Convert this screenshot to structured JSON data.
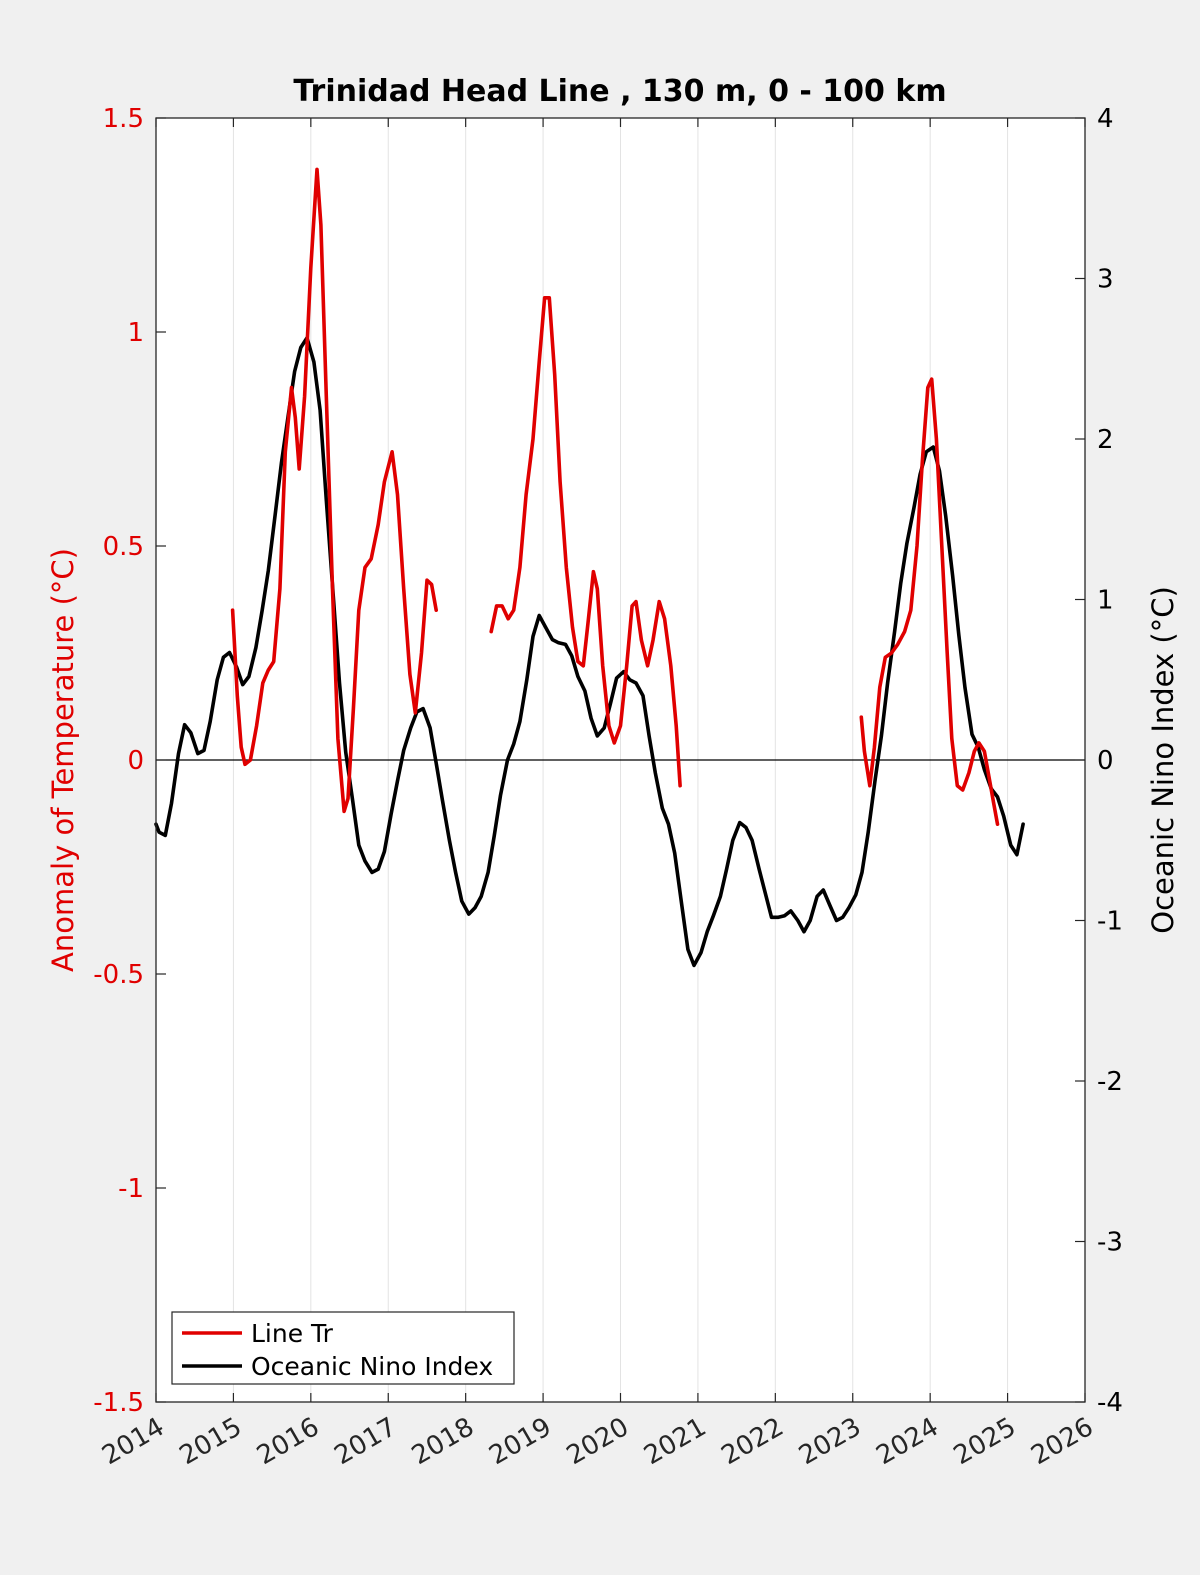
{
  "chart_data": {
    "type": "line",
    "title": "Trinidad Head Line , 130 m, 0 - 100 km",
    "left_ylabel": "Anomaly of Temperature (°C)",
    "right_ylabel": "Oceanic Nino Index (°C)",
    "xlim": [
      2014,
      2026
    ],
    "left_ylim": [
      -1.5,
      1.5
    ],
    "right_ylim": [
      -4,
      4
    ],
    "x_ticks": [
      2014,
      2015,
      2016,
      2017,
      2018,
      2019,
      2020,
      2021,
      2022,
      2023,
      2024,
      2025,
      2026
    ],
    "x_tick_labels": [
      "2014",
      "2015",
      "2016",
      "2017",
      "2018",
      "2019",
      "2020",
      "2021",
      "2022",
      "2023",
      "2024",
      "2025",
      "2026"
    ],
    "left_ticks": [
      -1.5,
      -1,
      -0.5,
      0,
      0.5,
      1,
      1.5
    ],
    "left_tick_labels": [
      "-1.5",
      "-1",
      "-0.5",
      "0",
      "0.5",
      "1",
      "1.5"
    ],
    "right_ticks": [
      -4,
      -3,
      -2,
      -1,
      0,
      1,
      2,
      3,
      4
    ],
    "right_tick_labels": [
      "-4",
      "-3",
      "-2",
      "-1",
      "0",
      "1",
      "2",
      "3",
      "4"
    ],
    "grid": "vertical",
    "zero_line": true,
    "legend_position": "bottom-left",
    "colors": {
      "line_tr": "#e00000",
      "oni": "#000000",
      "left_axis": "#e00000",
      "right_axis": "#000000"
    },
    "series": [
      {
        "name": "Line Tr",
        "axis": "left",
        "segments": [
          [
            [
              2014.99,
              0.35
            ],
            [
              2015.05,
              0.15
            ],
            [
              2015.1,
              0.03
            ],
            [
              2015.15,
              -0.01
            ],
            [
              2015.22,
              0.0
            ],
            [
              2015.3,
              0.08
            ],
            [
              2015.38,
              0.18
            ],
            [
              2015.45,
              0.21
            ],
            [
              2015.52,
              0.23
            ],
            [
              2015.6,
              0.4
            ],
            [
              2015.67,
              0.72
            ],
            [
              2015.75,
              0.87
            ],
            [
              2015.8,
              0.8
            ],
            [
              2015.85,
              0.68
            ],
            [
              2015.92,
              0.85
            ],
            [
              2016.0,
              1.15
            ],
            [
              2016.08,
              1.38
            ],
            [
              2016.13,
              1.25
            ],
            [
              2016.2,
              0.85
            ],
            [
              2016.28,
              0.4
            ],
            [
              2016.35,
              0.05
            ],
            [
              2016.43,
              -0.12
            ],
            [
              2016.48,
              -0.09
            ],
            [
              2016.55,
              0.12
            ],
            [
              2016.62,
              0.35
            ],
            [
              2016.7,
              0.45
            ],
            [
              2016.78,
              0.47
            ],
            [
              2016.87,
              0.55
            ],
            [
              2016.95,
              0.65
            ],
            [
              2017.05,
              0.72
            ],
            [
              2017.12,
              0.62
            ],
            [
              2017.2,
              0.4
            ],
            [
              2017.28,
              0.2
            ],
            [
              2017.35,
              0.11
            ],
            [
              2017.43,
              0.25
            ],
            [
              2017.5,
              0.42
            ],
            [
              2017.56,
              0.41
            ],
            [
              2017.62,
              0.35
            ]
          ],
          [
            [
              2018.33,
              0.3
            ],
            [
              2018.4,
              0.36
            ],
            [
              2018.47,
              0.36
            ],
            [
              2018.55,
              0.33
            ],
            [
              2018.62,
              0.35
            ],
            [
              2018.7,
              0.45
            ],
            [
              2018.78,
              0.62
            ],
            [
              2018.87,
              0.75
            ],
            [
              2018.95,
              0.93
            ],
            [
              2019.02,
              1.08
            ],
            [
              2019.08,
              1.08
            ],
            [
              2019.15,
              0.9
            ],
            [
              2019.22,
              0.65
            ],
            [
              2019.3,
              0.45
            ],
            [
              2019.38,
              0.31
            ],
            [
              2019.45,
              0.23
            ],
            [
              2019.52,
              0.22
            ],
            [
              2019.58,
              0.32
            ],
            [
              2019.65,
              0.44
            ],
            [
              2019.7,
              0.4
            ],
            [
              2019.77,
              0.22
            ],
            [
              2019.85,
              0.08
            ],
            [
              2019.92,
              0.04
            ],
            [
              2020.0,
              0.08
            ],
            [
              2020.08,
              0.22
            ],
            [
              2020.15,
              0.36
            ],
            [
              2020.2,
              0.37
            ],
            [
              2020.27,
              0.28
            ],
            [
              2020.35,
              0.22
            ],
            [
              2020.42,
              0.28
            ],
            [
              2020.5,
              0.37
            ],
            [
              2020.57,
              0.33
            ],
            [
              2020.65,
              0.22
            ],
            [
              2020.72,
              0.08
            ],
            [
              2020.77,
              -0.06
            ]
          ],
          [
            [
              2023.11,
              0.1
            ],
            [
              2023.15,
              0.02
            ],
            [
              2023.22,
              -0.06
            ],
            [
              2023.28,
              0.03
            ],
            [
              2023.35,
              0.17
            ],
            [
              2023.42,
              0.24
            ],
            [
              2023.5,
              0.25
            ],
            [
              2023.58,
              0.27
            ],
            [
              2023.67,
              0.3
            ],
            [
              2023.75,
              0.35
            ],
            [
              2023.83,
              0.5
            ],
            [
              2023.9,
              0.7
            ],
            [
              2023.97,
              0.87
            ],
            [
              2024.02,
              0.89
            ],
            [
              2024.08,
              0.75
            ],
            [
              2024.15,
              0.5
            ],
            [
              2024.22,
              0.25
            ],
            [
              2024.28,
              0.05
            ],
            [
              2024.35,
              -0.06
            ],
            [
              2024.42,
              -0.07
            ],
            [
              2024.5,
              -0.03
            ],
            [
              2024.57,
              0.02
            ],
            [
              2024.63,
              0.04
            ],
            [
              2024.7,
              0.02
            ],
            [
              2024.77,
              -0.05
            ],
            [
              2024.82,
              -0.1
            ],
            [
              2024.87,
              -0.15
            ]
          ]
        ]
      },
      {
        "name": "Oceanic Nino Index",
        "axis": "right",
        "segments": [
          [
            [
              2014.0,
              -0.4
            ],
            [
              2014.04,
              -0.45
            ],
            [
              2014.12,
              -0.47
            ],
            [
              2014.2,
              -0.27
            ],
            [
              2014.29,
              0.04
            ],
            [
              2014.37,
              0.22
            ],
            [
              2014.45,
              0.17
            ],
            [
              2014.54,
              0.04
            ],
            [
              2014.62,
              0.06
            ],
            [
              2014.7,
              0.24
            ],
            [
              2014.79,
              0.5
            ],
            [
              2014.87,
              0.64
            ],
            [
              2014.95,
              0.67
            ],
            [
              2015.04,
              0.58
            ],
            [
              2015.12,
              0.47
            ],
            [
              2015.2,
              0.52
            ],
            [
              2015.29,
              0.7
            ],
            [
              2015.37,
              0.93
            ],
            [
              2015.45,
              1.18
            ],
            [
              2015.54,
              1.53
            ],
            [
              2015.62,
              1.85
            ],
            [
              2015.7,
              2.12
            ],
            [
              2015.79,
              2.42
            ],
            [
              2015.87,
              2.57
            ],
            [
              2015.95,
              2.63
            ],
            [
              2016.04,
              2.48
            ],
            [
              2016.12,
              2.18
            ],
            [
              2016.2,
              1.62
            ],
            [
              2016.29,
              1.02
            ],
            [
              2016.37,
              0.48
            ],
            [
              2016.45,
              0.05
            ],
            [
              2016.54,
              -0.25
            ],
            [
              2016.62,
              -0.53
            ],
            [
              2016.7,
              -0.63
            ],
            [
              2016.79,
              -0.7
            ],
            [
              2016.87,
              -0.68
            ],
            [
              2016.95,
              -0.57
            ],
            [
              2017.04,
              -0.33
            ],
            [
              2017.12,
              -0.13
            ],
            [
              2017.2,
              0.06
            ],
            [
              2017.29,
              0.2
            ],
            [
              2017.37,
              0.3
            ],
            [
              2017.45,
              0.32
            ],
            [
              2017.54,
              0.2
            ],
            [
              2017.62,
              -0.02
            ],
            [
              2017.7,
              -0.25
            ],
            [
              2017.79,
              -0.5
            ],
            [
              2017.87,
              -0.7
            ],
            [
              2017.95,
              -0.88
            ],
            [
              2018.04,
              -0.96
            ],
            [
              2018.12,
              -0.92
            ],
            [
              2018.2,
              -0.85
            ],
            [
              2018.29,
              -0.7
            ],
            [
              2018.37,
              -0.47
            ],
            [
              2018.45,
              -0.22
            ],
            [
              2018.54,
              0.0
            ],
            [
              2018.62,
              0.1
            ],
            [
              2018.7,
              0.24
            ],
            [
              2018.79,
              0.5
            ],
            [
              2018.87,
              0.77
            ],
            [
              2018.95,
              0.9
            ],
            [
              2019.04,
              0.82
            ],
            [
              2019.12,
              0.75
            ],
            [
              2019.2,
              0.73
            ],
            [
              2019.29,
              0.72
            ],
            [
              2019.37,
              0.65
            ],
            [
              2019.45,
              0.52
            ],
            [
              2019.54,
              0.43
            ],
            [
              2019.62,
              0.26
            ],
            [
              2019.7,
              0.15
            ],
            [
              2019.79,
              0.2
            ],
            [
              2019.87,
              0.35
            ],
            [
              2019.95,
              0.51
            ],
            [
              2020.04,
              0.55
            ],
            [
              2020.12,
              0.5
            ],
            [
              2020.2,
              0.48
            ],
            [
              2020.29,
              0.4
            ],
            [
              2020.37,
              0.15
            ],
            [
              2020.45,
              -0.08
            ],
            [
              2020.54,
              -0.3
            ],
            [
              2020.62,
              -0.4
            ],
            [
              2020.7,
              -0.58
            ],
            [
              2020.79,
              -0.9
            ],
            [
              2020.87,
              -1.18
            ],
            [
              2020.95,
              -1.28
            ],
            [
              2021.04,
              -1.2
            ],
            [
              2021.12,
              -1.07
            ],
            [
              2021.2,
              -0.97
            ],
            [
              2021.29,
              -0.85
            ],
            [
              2021.37,
              -0.68
            ],
            [
              2021.45,
              -0.5
            ],
            [
              2021.54,
              -0.39
            ],
            [
              2021.62,
              -0.42
            ],
            [
              2021.7,
              -0.5
            ],
            [
              2021.79,
              -0.68
            ],
            [
              2021.87,
              -0.83
            ],
            [
              2021.95,
              -0.98
            ],
            [
              2022.04,
              -0.98
            ],
            [
              2022.12,
              -0.97
            ],
            [
              2022.2,
              -0.94
            ],
            [
              2022.29,
              -1.0
            ],
            [
              2022.37,
              -1.07
            ],
            [
              2022.45,
              -1.0
            ],
            [
              2022.54,
              -0.85
            ],
            [
              2022.62,
              -0.81
            ],
            [
              2022.7,
              -0.9
            ],
            [
              2022.79,
              -1.0
            ],
            [
              2022.87,
              -0.98
            ],
            [
              2022.95,
              -0.92
            ],
            [
              2023.04,
              -0.84
            ],
            [
              2023.12,
              -0.7
            ],
            [
              2023.2,
              -0.45
            ],
            [
              2023.29,
              -0.12
            ],
            [
              2023.37,
              0.15
            ],
            [
              2023.45,
              0.48
            ],
            [
              2023.54,
              0.8
            ],
            [
              2023.62,
              1.1
            ],
            [
              2023.7,
              1.35
            ],
            [
              2023.79,
              1.57
            ],
            [
              2023.87,
              1.78
            ],
            [
              2023.95,
              1.92
            ],
            [
              2024.04,
              1.95
            ],
            [
              2024.12,
              1.8
            ],
            [
              2024.2,
              1.52
            ],
            [
              2024.29,
              1.15
            ],
            [
              2024.37,
              0.78
            ],
            [
              2024.45,
              0.45
            ],
            [
              2024.54,
              0.16
            ],
            [
              2024.62,
              0.08
            ],
            [
              2024.7,
              -0.06
            ],
            [
              2024.79,
              -0.18
            ],
            [
              2024.87,
              -0.23
            ],
            [
              2024.95,
              -0.35
            ],
            [
              2025.04,
              -0.53
            ],
            [
              2025.12,
              -0.59
            ],
            [
              2025.2,
              -0.4
            ]
          ]
        ]
      }
    ]
  }
}
